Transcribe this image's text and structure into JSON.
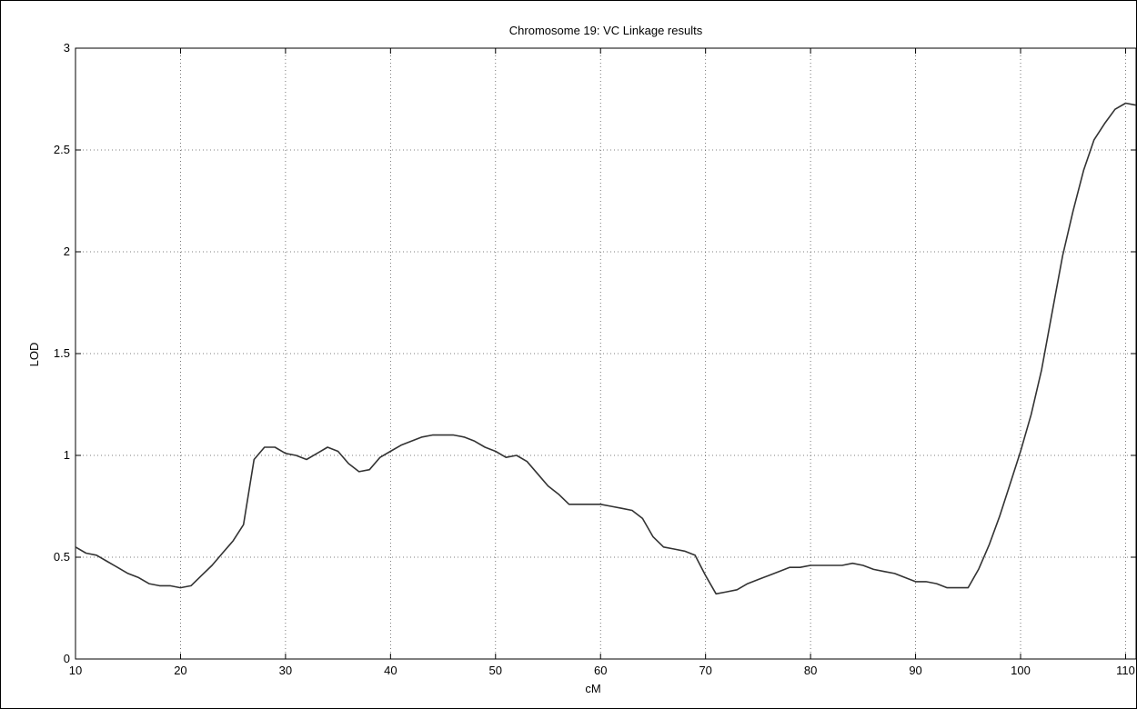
{
  "chart_data": {
    "type": "line",
    "title": "Chromosome 19: VC Linkage results",
    "xlabel": "cM",
    "ylabel": "LOD",
    "xlim": [
      10,
      111
    ],
    "ylim": [
      0,
      3
    ],
    "xticks": [
      10,
      20,
      30,
      40,
      50,
      60,
      70,
      80,
      90,
      100,
      110
    ],
    "yticks": [
      0,
      0.5,
      1,
      1.5,
      2,
      2.5,
      3
    ],
    "ytick_labels": [
      "0",
      "0.5",
      "1",
      "1.5",
      "2",
      "2.5",
      "3"
    ],
    "grid": true,
    "grid_style": "dotted",
    "line_color": "#333333",
    "x": [
      10,
      11,
      12,
      13,
      14,
      15,
      16,
      17,
      18,
      19,
      20,
      21,
      22,
      23,
      24,
      25,
      26,
      27,
      28,
      29,
      30,
      31,
      32,
      33,
      34,
      35,
      36,
      37,
      38,
      39,
      40,
      41,
      42,
      43,
      44,
      45,
      46,
      47,
      48,
      49,
      50,
      51,
      52,
      53,
      54,
      55,
      56,
      57,
      58,
      59,
      60,
      61,
      62,
      63,
      64,
      65,
      66,
      67,
      68,
      69,
      70,
      71,
      72,
      73,
      74,
      75,
      76,
      77,
      78,
      79,
      80,
      81,
      82,
      83,
      84,
      85,
      86,
      87,
      88,
      89,
      90,
      91,
      92,
      93,
      94,
      95,
      96,
      97,
      98,
      99,
      100,
      101,
      102,
      103,
      104,
      105,
      106,
      107,
      108,
      109,
      110,
      111
    ],
    "values": [
      0.55,
      0.52,
      0.51,
      0.48,
      0.45,
      0.42,
      0.4,
      0.37,
      0.36,
      0.36,
      0.35,
      0.36,
      0.41,
      0.46,
      0.52,
      0.58,
      0.66,
      0.98,
      1.04,
      1.04,
      1.01,
      1.0,
      0.98,
      1.01,
      1.04,
      1.02,
      0.96,
      0.92,
      0.93,
      0.99,
      1.02,
      1.05,
      1.07,
      1.09,
      1.1,
      1.1,
      1.1,
      1.09,
      1.07,
      1.04,
      1.02,
      0.99,
      1.0,
      0.97,
      0.91,
      0.85,
      0.81,
      0.76,
      0.76,
      0.76,
      0.76,
      0.75,
      0.74,
      0.73,
      0.69,
      0.6,
      0.55,
      0.54,
      0.53,
      0.51,
      0.41,
      0.32,
      0.33,
      0.34,
      0.37,
      0.39,
      0.41,
      0.43,
      0.45,
      0.45,
      0.46,
      0.46,
      0.46,
      0.46,
      0.47,
      0.46,
      0.44,
      0.43,
      0.42,
      0.4,
      0.38,
      0.38,
      0.37,
      0.35,
      0.35,
      0.35,
      0.44,
      0.56,
      0.7,
      0.86,
      1.02,
      1.2,
      1.42,
      1.7,
      1.98,
      2.2,
      2.4,
      2.55,
      2.63,
      2.7,
      2.73,
      2.72
    ]
  }
}
